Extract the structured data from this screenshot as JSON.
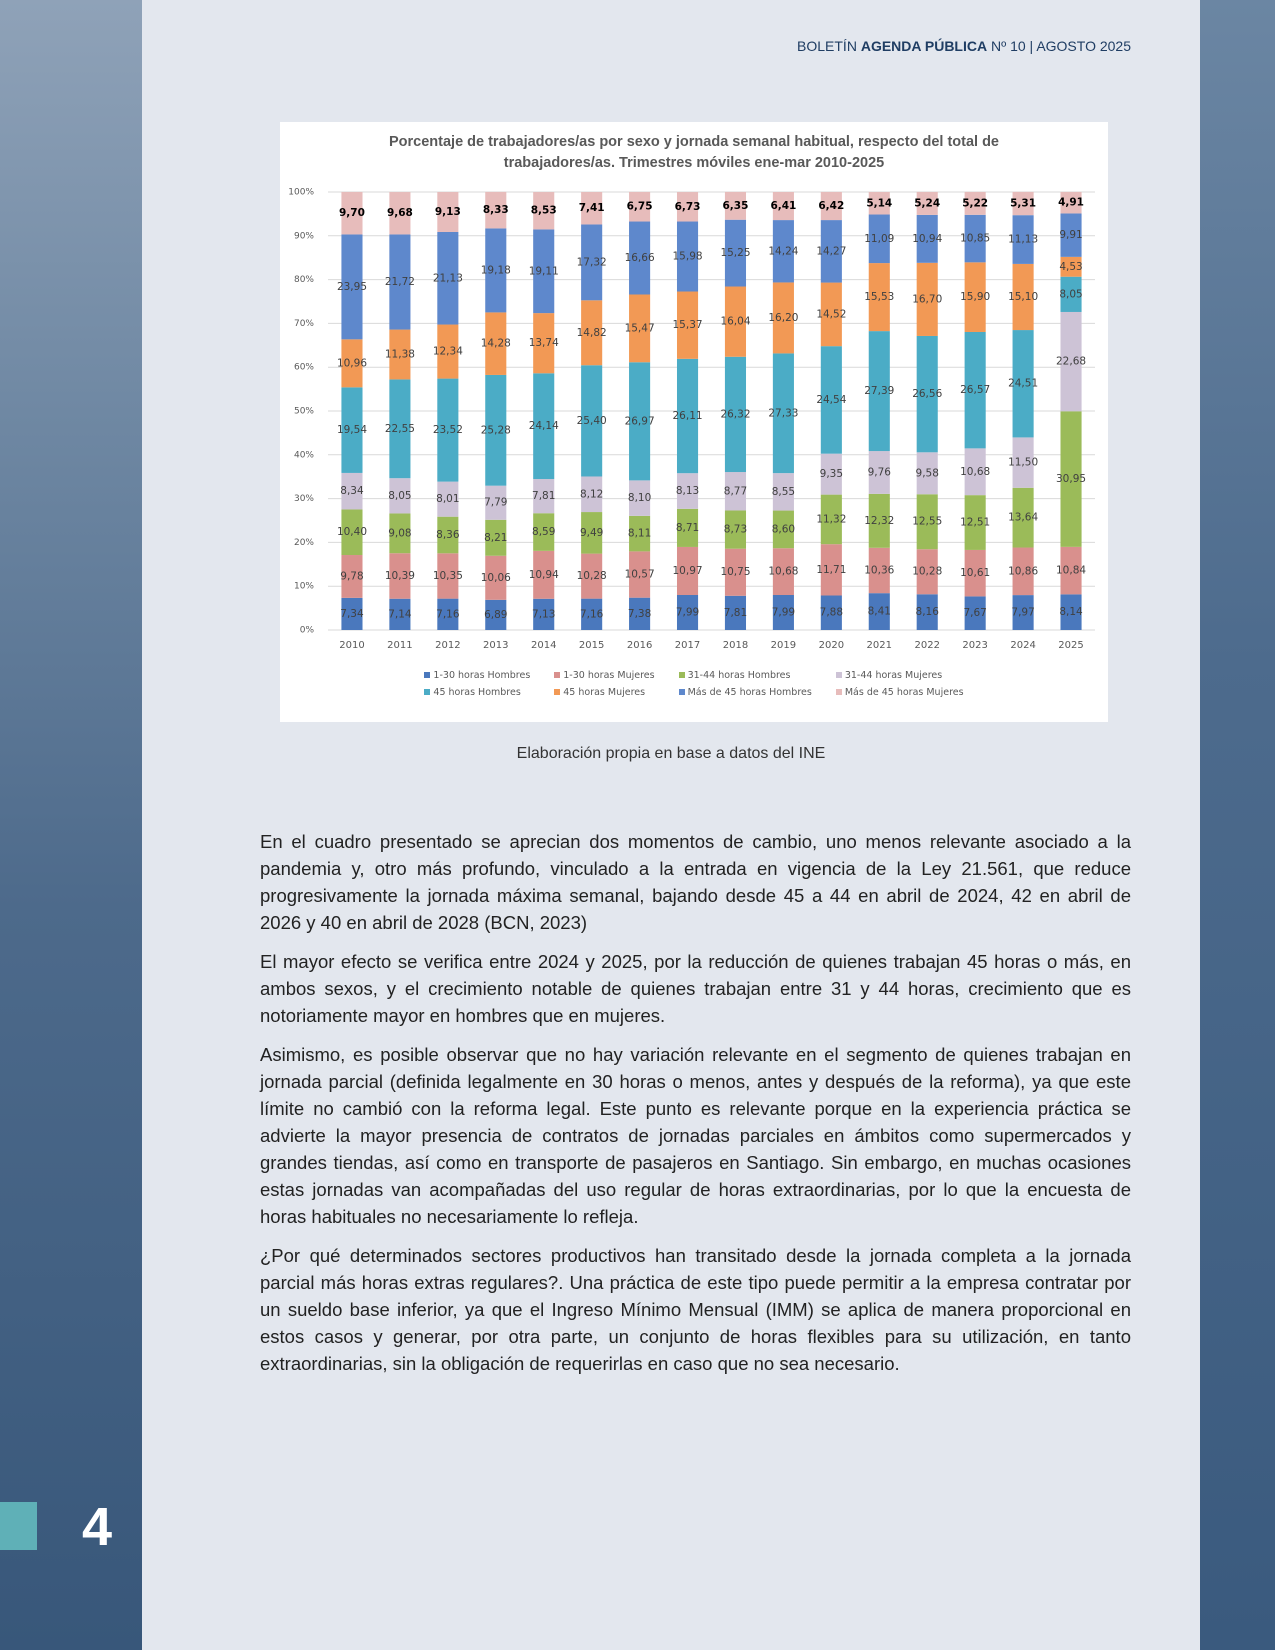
{
  "header": {
    "prefix": "BOLETÍN",
    "bold": "AGENDA PÚBLICA",
    "rest": "Nº 10 | AGOSTO 2025"
  },
  "chart_data": {
    "type": "bar",
    "stacked": true,
    "title": "Porcentaje de trabajadores/as por sexo y jornada semanal habitual, respecto del total de trabajadores/as. Trimestres móviles ene-mar 2010-2025",
    "categories": [
      "2010",
      "2011",
      "2012",
      "2013",
      "2014",
      "2015",
      "2016",
      "2017",
      "2018",
      "2019",
      "2020",
      "2021",
      "2022",
      "2023",
      "2024",
      "2025"
    ],
    "ylim": [
      0,
      100
    ],
    "yticks": [
      {
        "value": 0,
        "label": "0%"
      },
      {
        "value": 10,
        "label": "10%"
      },
      {
        "value": 20,
        "label": "20%"
      },
      {
        "value": 30,
        "label": "30%"
      },
      {
        "value": 40,
        "label": "40%"
      },
      {
        "value": 50,
        "label": "50%"
      },
      {
        "value": 60,
        "label": "60%"
      },
      {
        "value": 70,
        "label": "70%"
      },
      {
        "value": 80,
        "label": "80%"
      },
      {
        "value": 90,
        "label": "90%"
      },
      {
        "value": 100,
        "label": "100%"
      }
    ],
    "grid": true,
    "legend": "bottom",
    "series": [
      {
        "name": "1-30 horas Hombres",
        "color": "#4a78bd",
        "values": [
          7.34,
          7.14,
          7.16,
          6.89,
          7.13,
          7.16,
          7.38,
          7.99,
          7.81,
          7.99,
          7.88,
          8.41,
          8.16,
          7.67,
          7.97,
          8.14
        ],
        "value_labels": [
          "7,34",
          "7,14",
          "7,16",
          "6,89",
          "7,13",
          "7,16",
          "7,38",
          "7,99",
          "7,81",
          "7,99",
          "7,88",
          "8,41",
          "8,16",
          "7,67",
          "7,97",
          "8,14"
        ]
      },
      {
        "name": "1-30 horas Mujeres",
        "color": "#d9908d",
        "values": [
          9.78,
          10.39,
          10.35,
          10.06,
          10.94,
          10.28,
          10.57,
          10.97,
          10.75,
          10.68,
          11.71,
          10.36,
          10.28,
          10.61,
          10.86,
          10.84
        ],
        "value_labels": [
          "9,78",
          "10,39",
          "10,35",
          "10,06",
          "10,94",
          "10,28",
          "10,57",
          "10,97",
          "10,75",
          "10,68",
          "11,71",
          "10,36",
          "10,28",
          "10,61",
          "10,86",
          "10,84"
        ]
      },
      {
        "name": "31-44 horas Hombres",
        "color": "#9bbb59",
        "values": [
          10.4,
          9.08,
          8.36,
          8.21,
          8.59,
          9.49,
          8.11,
          8.71,
          8.73,
          8.6,
          11.32,
          12.32,
          12.55,
          12.51,
          13.64,
          30.95
        ],
        "value_labels": [
          "10,40",
          "9,08",
          "8,36",
          "8,21",
          "8,59",
          "9,49",
          "8,11",
          "8,71",
          "8,73",
          "8,60",
          "11,32",
          "12,32",
          "12,55",
          "12,51",
          "13,64",
          "30,95"
        ]
      },
      {
        "name": "31-44 horas Mujeres",
        "color": "#cdc3d6",
        "values": [
          8.34,
          8.05,
          8.01,
          7.79,
          7.81,
          8.12,
          8.1,
          8.13,
          8.77,
          8.55,
          9.35,
          9.76,
          9.58,
          10.68,
          11.5,
          22.68
        ],
        "value_labels": [
          "8,34",
          "8,05",
          "8,01",
          "7,79",
          "7,81",
          "8,12",
          "8,10",
          "8,13",
          "8,77",
          "8,55",
          "9,35",
          "9,76",
          "9,58",
          "10,68",
          "11,50",
          "22,68"
        ]
      },
      {
        "name": "45 horas Hombres",
        "color": "#4bacc6",
        "values": [
          19.54,
          22.55,
          23.52,
          25.28,
          24.14,
          25.4,
          26.97,
          26.11,
          26.32,
          27.33,
          24.54,
          27.39,
          26.56,
          26.57,
          24.51,
          8.05
        ],
        "value_labels": [
          "19,54",
          "22,55",
          "23,52",
          "25,28",
          "24,14",
          "25,40",
          "26,97",
          "26,11",
          "26,32",
          "27,33",
          "24,54",
          "27,39",
          "26,56",
          "26,57",
          "24,51",
          "8,05"
        ]
      },
      {
        "name": "45 horas Mujeres",
        "color": "#f29955",
        "values": [
          10.96,
          11.38,
          12.34,
          14.28,
          13.74,
          14.82,
          15.47,
          15.37,
          16.04,
          16.2,
          14.52,
          15.53,
          16.7,
          15.9,
          15.1,
          4.53
        ],
        "value_labels": [
          "10,96",
          "11,38",
          "12,34",
          "14,28",
          "13,74",
          "14,82",
          "15,47",
          "15,37",
          "16,04",
          "16,20",
          "14,52",
          "15,53",
          "16,70",
          "15,90",
          "15,10",
          "4,53"
        ]
      },
      {
        "name": "Más de 45 horas Hombres",
        "color": "#5e88cc",
        "values": [
          23.95,
          21.72,
          21.13,
          19.18,
          19.11,
          17.32,
          16.66,
          15.98,
          15.25,
          14.24,
          14.27,
          11.09,
          10.94,
          10.85,
          11.13,
          9.91
        ],
        "value_labels": [
          "23,95",
          "21,72",
          "21,13",
          "19,18",
          "19,11",
          "17,32",
          "16,66",
          "15,98",
          "15,25",
          "14,24",
          "14,27",
          "11,09",
          "10,94",
          "10,85",
          "11,13",
          "9,91"
        ]
      },
      {
        "name": "Más de 45 horas Mujeres",
        "color": "#e7bcbb",
        "values": [
          9.7,
          9.68,
          9.13,
          8.33,
          8.53,
          7.41,
          6.75,
          6.73,
          6.35,
          6.41,
          6.42,
          5.14,
          5.24,
          5.22,
          5.31,
          4.91
        ],
        "value_labels": [
          "9,70",
          "9,68",
          "9,13",
          "8,33",
          "8,53",
          "7,41",
          "6,75",
          "6,73",
          "6,35",
          "6,41",
          "6,42",
          "5,14",
          "5,24",
          "5,22",
          "5,31",
          "4,91"
        ]
      }
    ]
  },
  "caption": "Elaboración propia en base a datos del INE",
  "paragraphs": [
    "En el cuadro presentado se aprecian dos momentos de cambio, uno menos relevante asociado a la pandemia y, otro más profundo, vinculado a la entrada en vigencia de la Ley 21.561, que reduce progresivamente la jornada máxima semanal, bajando desde 45 a 44 en abril de 2024, 42 en abril de 2026 y 40 en abril de 2028 (BCN, 2023)",
    "El mayor efecto se verifica entre 2024 y 2025, por la reducción de quienes trabajan 45 horas o más, en ambos sexos, y el crecimiento notable de quienes trabajan entre 31 y 44 horas, crecimiento que es notoriamente mayor en hombres que en mujeres.",
    "Asimismo, es posible observar que no hay variación relevante en el segmento de quienes trabajan en jornada parcial (definida legalmente en 30 horas o menos, antes y después de la reforma), ya que este límite no cambió con la reforma legal. Este punto es relevante porque en la experiencia práctica se advierte la mayor presencia de contratos de jornadas parciales en ámbitos como supermercados y grandes tiendas, así como en transporte de pasajeros en Santiago. Sin embargo, en muchas ocasiones estas jornadas van acompañadas del uso regular de horas extraordinarias, por lo que la encuesta de horas habituales no necesariamente lo refleja.",
    "¿Por qué determinados sectores productivos han transitado desde la jornada completa a la jornada parcial más horas extras regulares?. Una práctica de este tipo puede permitir a la empresa contratar por un sueldo base inferior, ya que el Ingreso Mínimo Mensual (IMM) se aplica de manera proporcional en estos casos y generar, por otra parte, un conjunto de horas flexibles para su utilización, en tanto extraordinarias, sin la obligación de requerirlas en caso que no sea necesario."
  ],
  "page_number": "4"
}
